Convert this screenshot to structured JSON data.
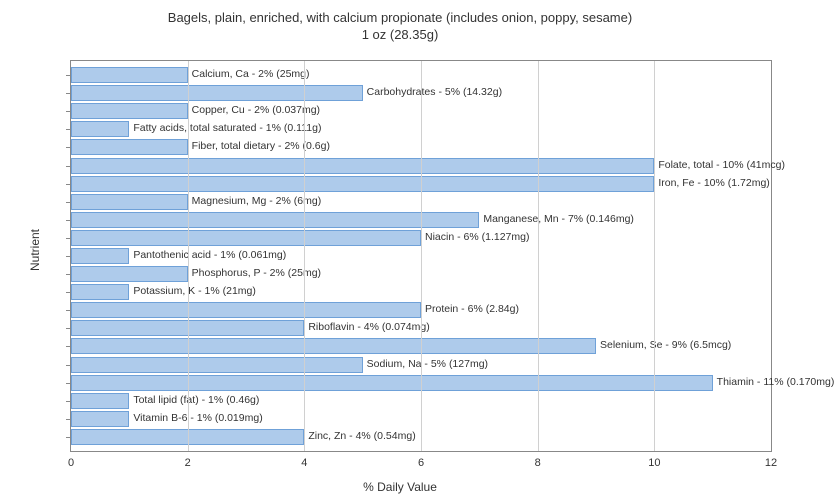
{
  "chart": {
    "type": "horizontal-bar",
    "title_line1": "Bagels, plain, enriched, with calcium propionate (includes onion, poppy, sesame)",
    "title_line2": "1 oz (28.35g)",
    "ylabel": "Nutrient",
    "xlabel": "% Daily Value",
    "xlim": [
      0,
      12
    ],
    "xtick_step": 2,
    "xticks": [
      "0",
      "2",
      "4",
      "6",
      "8",
      "10",
      "12"
    ],
    "bar_color": "#aecbeb",
    "bar_border_color": "#6fa1d8",
    "grid_color": "#d0d0d0",
    "border_color": "#888888",
    "background_color": "#ffffff",
    "label_fontsize": 10.5,
    "axis_fontsize": 12,
    "title_fontsize": 13,
    "items": [
      {
        "label": "Calcium, Ca - 2% (25mg)",
        "value": 2
      },
      {
        "label": "Carbohydrates - 5% (14.32g)",
        "value": 5
      },
      {
        "label": "Copper, Cu - 2% (0.037mg)",
        "value": 2
      },
      {
        "label": "Fatty acids, total saturated - 1% (0.111g)",
        "value": 1
      },
      {
        "label": "Fiber, total dietary - 2% (0.6g)",
        "value": 2
      },
      {
        "label": "Folate, total - 10% (41mcg)",
        "value": 10
      },
      {
        "label": "Iron, Fe - 10% (1.72mg)",
        "value": 10
      },
      {
        "label": "Magnesium, Mg - 2% (6mg)",
        "value": 2
      },
      {
        "label": "Manganese, Mn - 7% (0.146mg)",
        "value": 7
      },
      {
        "label": "Niacin - 6% (1.127mg)",
        "value": 6
      },
      {
        "label": "Pantothenic acid - 1% (0.061mg)",
        "value": 1
      },
      {
        "label": "Phosphorus, P - 2% (25mg)",
        "value": 2
      },
      {
        "label": "Potassium, K - 1% (21mg)",
        "value": 1
      },
      {
        "label": "Protein - 6% (2.84g)",
        "value": 6
      },
      {
        "label": "Riboflavin - 4% (0.074mg)",
        "value": 4
      },
      {
        "label": "Selenium, Se - 9% (6.5mcg)",
        "value": 9
      },
      {
        "label": "Sodium, Na - 5% (127mg)",
        "value": 5
      },
      {
        "label": "Thiamin - 11% (0.170mg)",
        "value": 11
      },
      {
        "label": "Total lipid (fat) - 1% (0.46g)",
        "value": 1
      },
      {
        "label": "Vitamin B-6 - 1% (0.019mg)",
        "value": 1
      },
      {
        "label": "Zinc, Zn - 4% (0.54mg)",
        "value": 4
      }
    ]
  }
}
